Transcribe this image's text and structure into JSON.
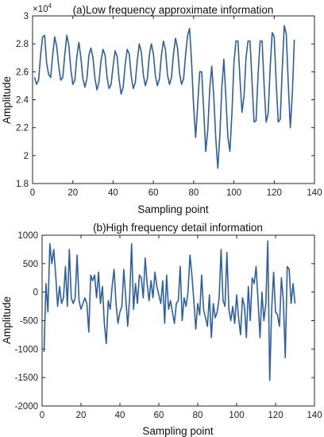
{
  "chart_data": [
    {
      "type": "line",
      "title": "(a)Low frequency approximate information",
      "xlabel": "Sampling point",
      "ylabel": "Amplitude",
      "xlim": [
        0,
        140
      ],
      "ylim": [
        1.8,
        3.0
      ],
      "y_multiplier": {
        "base": "×10",
        "exponent": "4"
      },
      "xticks": [
        0,
        20,
        40,
        60,
        80,
        100,
        120,
        140
      ],
      "yticks": [
        1.8,
        2,
        2.2,
        2.4,
        2.6,
        2.8,
        3
      ],
      "ytick_labels": [
        "1.8",
        "2",
        "2.2",
        "2.4",
        "2.6",
        "2.8",
        "3"
      ],
      "line_color": "#2b5fae",
      "grid": false,
      "series": [
        {
          "x": [
            1,
            2,
            3,
            4,
            5,
            6,
            7,
            8,
            9,
            10,
            11,
            12,
            13,
            14,
            15,
            16,
            17,
            18,
            19,
            20,
            21,
            22,
            23,
            24,
            25,
            26,
            27,
            28,
            29,
            30,
            31,
            32,
            33,
            34,
            35,
            36,
            37,
            38,
            39,
            40,
            41,
            42,
            43,
            44,
            45,
            46,
            47,
            48,
            49,
            50,
            51,
            52,
            53,
            54,
            55,
            56,
            57,
            58,
            59,
            60,
            61,
            62,
            63,
            64,
            65,
            66,
            67,
            68,
            69,
            70,
            71,
            72,
            73,
            74,
            75,
            76,
            77,
            78,
            79,
            80,
            81,
            82,
            83,
            84,
            85,
            86,
            87,
            88,
            89,
            90,
            91,
            92,
            93,
            94,
            95,
            96,
            97,
            98,
            99,
            100,
            101,
            102,
            103,
            104,
            105,
            106,
            107,
            108,
            109,
            110,
            111,
            112,
            113,
            114,
            115,
            116,
            117,
            118,
            119,
            120,
            121,
            122,
            123,
            124,
            125,
            126,
            127,
            128,
            129,
            130
          ],
          "values": [
            2.56,
            2.51,
            2.54,
            2.72,
            2.85,
            2.86,
            2.66,
            2.58,
            2.56,
            2.72,
            2.85,
            2.78,
            2.64,
            2.54,
            2.56,
            2.72,
            2.86,
            2.79,
            2.62,
            2.51,
            2.54,
            2.71,
            2.81,
            2.7,
            2.55,
            2.49,
            2.55,
            2.72,
            2.77,
            2.7,
            2.55,
            2.47,
            2.53,
            2.68,
            2.76,
            2.72,
            2.56,
            2.48,
            2.51,
            2.64,
            2.75,
            2.71,
            2.54,
            2.44,
            2.49,
            2.65,
            2.76,
            2.73,
            2.57,
            2.48,
            2.52,
            2.68,
            2.8,
            2.74,
            2.58,
            2.5,
            2.55,
            2.72,
            2.8,
            2.73,
            2.57,
            2.5,
            2.55,
            2.72,
            2.82,
            2.76,
            2.58,
            2.51,
            2.56,
            2.73,
            2.84,
            2.77,
            2.59,
            2.51,
            2.55,
            2.72,
            2.86,
            2.91,
            2.66,
            2.35,
            2.13,
            2.36,
            2.6,
            2.6,
            2.32,
            2.03,
            2.18,
            2.48,
            2.64,
            2.42,
            2.12,
            1.91,
            2.14,
            2.49,
            2.69,
            2.42,
            2.13,
            2.03,
            2.3,
            2.66,
            2.82,
            2.82,
            2.55,
            2.31,
            2.42,
            2.7,
            2.82,
            2.82,
            2.53,
            2.24,
            2.25,
            2.58,
            2.82,
            2.82,
            2.5,
            2.24,
            2.3,
            2.63,
            2.88,
            2.85,
            2.52,
            2.24,
            2.26,
            2.62,
            2.93,
            2.87,
            2.51,
            2.2,
            2.44,
            2.83
          ]
        }
      ]
    },
    {
      "type": "line",
      "title": "(b)High frequency detail information",
      "xlabel": "Sampling point",
      "ylabel": "Amplitude",
      "xlim": [
        0,
        140
      ],
      "ylim": [
        -2000,
        1000
      ],
      "xticks": [
        0,
        20,
        40,
        60,
        80,
        100,
        120,
        140
      ],
      "yticks": [
        -2000,
        -1500,
        -1000,
        -500,
        0,
        500,
        1000
      ],
      "ytick_labels": [
        "-2000",
        "-1500",
        "-1000",
        "-500",
        "0",
        "500",
        "1000"
      ],
      "line_color": "#2b5fae",
      "grid": false,
      "series": [
        {
          "x": [
            1,
            2,
            3,
            4,
            5,
            6,
            7,
            8,
            9,
            10,
            11,
            12,
            13,
            14,
            15,
            16,
            17,
            18,
            19,
            20,
            21,
            22,
            23,
            24,
            25,
            26,
            27,
            28,
            29,
            30,
            31,
            32,
            33,
            34,
            35,
            36,
            37,
            38,
            39,
            40,
            41,
            42,
            43,
            44,
            45,
            46,
            47,
            48,
            49,
            50,
            51,
            52,
            53,
            54,
            55,
            56,
            57,
            58,
            59,
            60,
            61,
            62,
            63,
            64,
            65,
            66,
            67,
            68,
            69,
            70,
            71,
            72,
            73,
            74,
            75,
            76,
            77,
            78,
            79,
            80,
            81,
            82,
            83,
            84,
            85,
            86,
            87,
            88,
            89,
            90,
            91,
            92,
            93,
            94,
            95,
            96,
            97,
            98,
            99,
            100,
            101,
            102,
            103,
            104,
            105,
            106,
            107,
            108,
            109,
            110,
            111,
            112,
            113,
            114,
            115,
            116,
            117,
            118,
            119,
            120,
            121,
            122,
            123,
            124,
            125,
            126,
            127,
            128,
            129,
            130
          ],
          "values": [
            -1050,
            150,
            -350,
            850,
            500,
            750,
            300,
            -250,
            100,
            -200,
            -100,
            450,
            -250,
            750,
            -100,
            -200,
            -100,
            650,
            -150,
            -300,
            -200,
            -100,
            -200,
            -700,
            300,
            200,
            300,
            -100,
            350,
            -200,
            100,
            -550,
            -900,
            -150,
            -300,
            100,
            400,
            -200,
            -550,
            -350,
            -250,
            400,
            -100,
            -600,
            -100,
            850,
            -300,
            150,
            -200,
            300,
            250,
            -100,
            600,
            150,
            -150,
            200,
            -100,
            350,
            100,
            -50,
            -200,
            200,
            -550,
            300,
            -300,
            -150,
            -350,
            -550,
            -200,
            -150,
            450,
            -500,
            -100,
            -250,
            0,
            650,
            300,
            -150,
            -650,
            -200,
            -400,
            300,
            -300,
            -450,
            -600,
            -50,
            -800,
            -200,
            -450,
            -350,
            -100,
            750,
            -150,
            -250,
            700,
            -300,
            -500,
            -250,
            -550,
            -50,
            -450,
            -750,
            -100,
            -250,
            -800,
            100,
            -500,
            250,
            150,
            450,
            -150,
            -800,
            0,
            -500,
            -200,
            900,
            -1550,
            -300,
            350,
            -350,
            -400,
            -600,
            250,
            -150,
            -1150,
            450,
            400,
            -200,
            150,
            -200
          ]
        }
      ]
    }
  ]
}
